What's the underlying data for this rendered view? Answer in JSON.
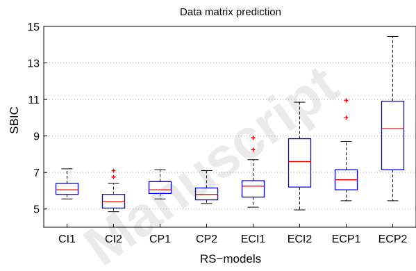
{
  "chart_data": {
    "type": "box",
    "title": "Data matrix prediction",
    "xlabel": "RS−models",
    "ylabel": "SBIC",
    "ylim": [
      4,
      15
    ],
    "yticks": [
      5,
      7,
      9,
      11,
      13,
      15
    ],
    "grid": "horizontal dotted",
    "categories": [
      "CI1",
      "CI2",
      "CP1",
      "CP2",
      "ECI1",
      "ECI2",
      "ECP1",
      "ECP2"
    ],
    "boxes": [
      {
        "min": 5.55,
        "q1": 5.8,
        "median": 6.05,
        "q3": 6.4,
        "max": 7.2,
        "outliers": []
      },
      {
        "min": 4.85,
        "q1": 5.05,
        "median": 5.4,
        "q3": 5.8,
        "max": 6.4,
        "outliers": [
          6.75,
          7.1
        ]
      },
      {
        "min": 5.55,
        "q1": 5.85,
        "median": 6.05,
        "q3": 6.5,
        "max": 7.15,
        "outliers": []
      },
      {
        "min": 5.3,
        "q1": 5.5,
        "median": 5.8,
        "q3": 6.15,
        "max": 7.1,
        "outliers": []
      },
      {
        "min": 5.1,
        "q1": 5.65,
        "median": 6.25,
        "q3": 6.55,
        "max": 7.7,
        "outliers": [
          8.25,
          8.9
        ]
      },
      {
        "min": 4.95,
        "q1": 6.2,
        "median": 7.6,
        "q3": 8.85,
        "max": 10.85,
        "outliers": []
      },
      {
        "min": 5.45,
        "q1": 6.05,
        "median": 6.6,
        "q3": 7.15,
        "max": 8.7,
        "outliers": [
          10.0,
          10.95
        ]
      },
      {
        "min": 5.45,
        "q1": 7.15,
        "median": 9.4,
        "q3": 10.9,
        "max": 14.45,
        "outliers": []
      }
    ],
    "colors": {
      "box": "#0000ff",
      "median": "#ff0000",
      "outlier": "#ff0000",
      "whisker": "#000000",
      "grid": "#aaaaaa"
    }
  },
  "watermark": "Manuscript"
}
